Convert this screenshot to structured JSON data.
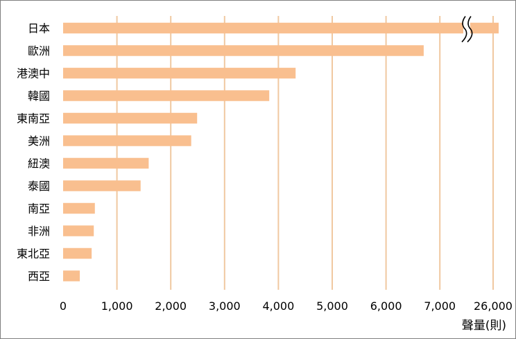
{
  "chart_data": {
    "type": "bar",
    "orientation": "horizontal",
    "categories": [
      "日本",
      "歐洲",
      "港澳中",
      "韓國",
      "東南亞",
      "美洲",
      "紐澳",
      "泰國",
      "南亞",
      "非洲",
      "東北亞",
      "西亞"
    ],
    "values": [
      26000,
      6700,
      4320,
      3830,
      2490,
      2380,
      1590,
      1440,
      590,
      570,
      530,
      310
    ],
    "xlabel": "聲量(則)",
    "ylabel": "",
    "x_ticks": [
      "0",
      "1,000",
      "2,000",
      "3,000",
      "4,000",
      "5,000",
      "6,000",
      "7,000",
      "26,000"
    ],
    "axis_break": {
      "between": [
        7000,
        26000
      ]
    },
    "xlim": [
      0,
      26000
    ],
    "grid": "vertical",
    "legend": "none",
    "colors": {
      "bar": "#f9bf8f",
      "grid": "#f0c8a0",
      "border": "#7f7f7f"
    }
  }
}
